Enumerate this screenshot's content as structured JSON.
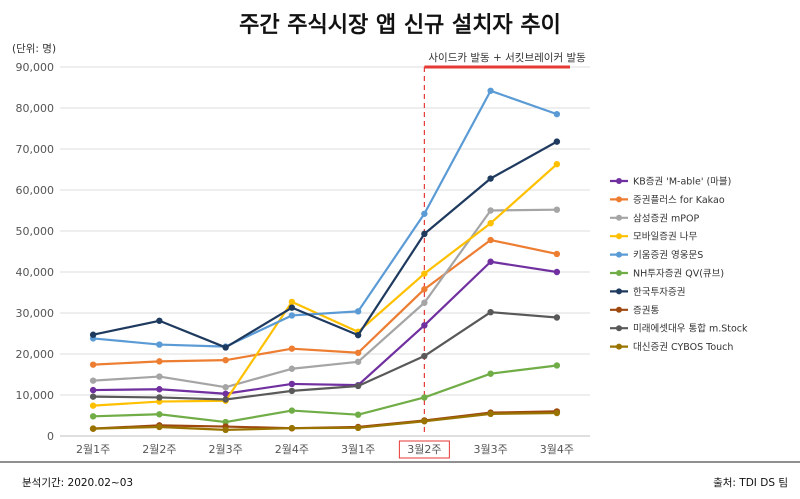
{
  "header": {
    "title": "주간 주식시장 앱 신규 설치자 추이",
    "unit": "(단위: 명)"
  },
  "annotation": {
    "text": "사이드카 발동 + 서킷브레이커 발동",
    "marker_category": "3월2주",
    "color": "#e53935"
  },
  "footer": {
    "period": "분석기간: 2020.02~03",
    "source": "출처: TDI DS 팀"
  },
  "chart_data": {
    "type": "line",
    "title": "주간 주식시장 앱 신규 설치자 추이",
    "xlabel": "",
    "ylabel": "(단위: 명)",
    "ylim": [
      0,
      90000
    ],
    "yticks": [
      0,
      10000,
      20000,
      30000,
      40000,
      50000,
      60000,
      70000,
      80000,
      90000
    ],
    "ytick_labels": [
      "0",
      "10,000",
      "20,000",
      "30,000",
      "40,000",
      "50,000",
      "60,000",
      "70,000",
      "80,000",
      "90,000"
    ],
    "grid": true,
    "legend": "right",
    "categories": [
      "2월1주",
      "2월2주",
      "2월3주",
      "2월4주",
      "3월1주",
      "3월2주",
      "3월3주",
      "3월4주"
    ],
    "series": [
      {
        "name": "KB증권 'M-able' (마블)",
        "color": "#7030a0",
        "values": [
          11200,
          11400,
          10300,
          12700,
          12400,
          27000,
          42500,
          40000
        ]
      },
      {
        "name": "증권플러스 for Kakao",
        "color": "#ed7d31",
        "values": [
          17400,
          18200,
          18500,
          21300,
          20300,
          35800,
          47800,
          44400
        ]
      },
      {
        "name": "삼성증권 mPOP",
        "color": "#a5a5a5",
        "values": [
          13500,
          14500,
          11900,
          16400,
          18100,
          32500,
          55000,
          55200
        ]
      },
      {
        "name": "모바일증권 나무",
        "color": "#ffc000",
        "values": [
          7400,
          8400,
          8600,
          32700,
          25400,
          39600,
          51900,
          66300
        ]
      },
      {
        "name": "키움증권 영웅문S",
        "color": "#5b9bd5",
        "values": [
          23800,
          22300,
          21800,
          29400,
          30400,
          54200,
          84200,
          78500
        ]
      },
      {
        "name": "NH투자증권 QV(큐브)",
        "color": "#70ad47",
        "values": [
          4800,
          5300,
          3400,
          6200,
          5200,
          9400,
          15200,
          17200
        ]
      },
      {
        "name": "한국투자증권",
        "color": "#1f3a5f",
        "values": [
          24700,
          28100,
          21600,
          31300,
          24600,
          49300,
          62800,
          71800
        ]
      },
      {
        "name": "증권통",
        "color": "#9e480e",
        "values": [
          1800,
          2600,
          2300,
          1900,
          2200,
          3800,
          5700,
          6000
        ]
      },
      {
        "name": "미래에셋대우 통합 m.Stock",
        "color": "#595959",
        "values": [
          9600,
          9400,
          8900,
          11000,
          12200,
          19500,
          30200,
          28900
        ]
      },
      {
        "name": "대신증권 CYBOS Touch",
        "color": "#997300",
        "values": [
          1800,
          2200,
          1500,
          1900,
          2000,
          3600,
          5400,
          5600
        ]
      }
    ]
  }
}
